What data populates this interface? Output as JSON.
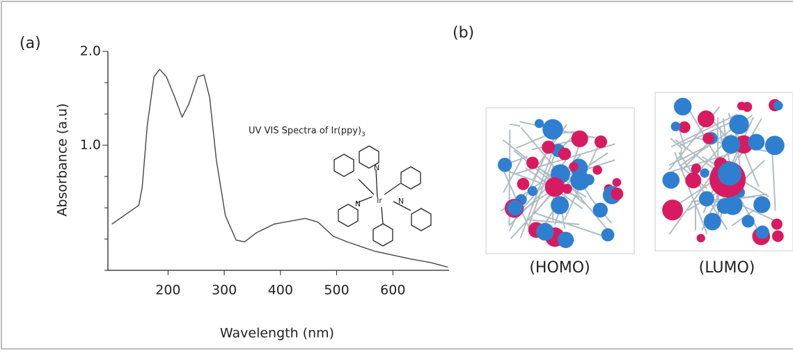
{
  "panel_a": "(a)",
  "panel_b": "(b)",
  "chart_data": {
    "type": "line",
    "x_label": "Wavelength (nm)",
    "y_label": "Absorbance (a.u)",
    "x": [
      100,
      105,
      148,
      154,
      163,
      175,
      185,
      197,
      212,
      225,
      237,
      253,
      264,
      274,
      286,
      302,
      321,
      336,
      358,
      389,
      444,
      467,
      494,
      519,
      568,
      630,
      667,
      698
    ],
    "values": [
      0.16,
      0.18,
      0.36,
      0.55,
      1.21,
      1.73,
      1.81,
      1.73,
      1.51,
      1.3,
      1.44,
      1.73,
      1.75,
      1.51,
      0.84,
      0.25,
      -0.01,
      -0.03,
      0.07,
      0.16,
      0.22,
      0.18,
      0.03,
      -0.03,
      -0.13,
      -0.21,
      -0.25,
      -0.3
    ],
    "color": "#444444",
    "xlim": [
      93,
      700
    ],
    "ylim": [
      -0.333,
      2.0
    ],
    "xticks": [
      200,
      300,
      400,
      500,
      600
    ],
    "yticks": [
      {
        "value": 2,
        "label": "2.0"
      },
      {
        "value": 1,
        "label": "1.0"
      }
    ],
    "minor_yticks": [
      1.667,
      1.333,
      0.667,
      0.333,
      0,
      -0.333
    ],
    "annotation": {
      "text": "UV VIS Spectra of Ir(ppy)",
      "subscript": "3"
    },
    "molecule_labels": [
      "N",
      "N",
      "N",
      "Ir"
    ]
  },
  "orbitals": [
    {
      "label": "(HOMO)"
    },
    {
      "label": "(LUMO)"
    }
  ]
}
